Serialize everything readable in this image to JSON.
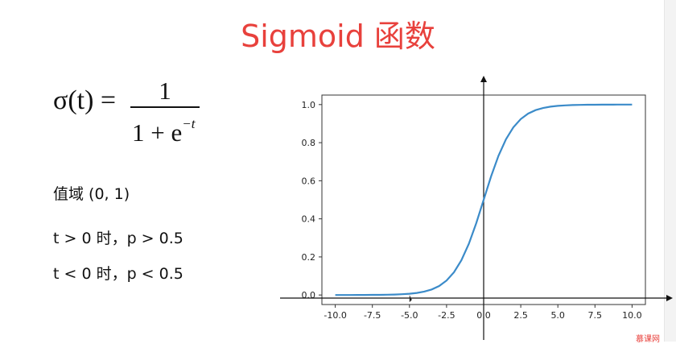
{
  "slide": {
    "title": "Sigmoid 函数",
    "formula": {
      "lhs": "σ(t) =",
      "numerator": "1",
      "denominator_base": "1 + e",
      "denominator_exponent": "−t"
    },
    "notes": {
      "range": "值域 (0, 1)",
      "positive": "t > 0 时，p > 0.5",
      "negative": "t < 0 时，p < 0.5"
    },
    "watermark": "慕课网"
  },
  "chart_data": {
    "type": "line",
    "function": "sigmoid",
    "x": [
      -10.0,
      -9.5,
      -9.0,
      -8.5,
      -8.0,
      -7.5,
      -7.0,
      -6.5,
      -6.0,
      -5.5,
      -5.0,
      -4.5,
      -4.0,
      -3.5,
      -3.0,
      -2.5,
      -2.0,
      -1.5,
      -1.0,
      -0.5,
      0.0,
      0.5,
      1.0,
      1.5,
      2.0,
      2.5,
      3.0,
      3.5,
      4.0,
      4.5,
      5.0,
      5.5,
      6.0,
      6.5,
      7.0,
      7.5,
      8.0,
      8.5,
      9.0,
      9.5,
      10.0
    ],
    "series": [
      {
        "color": "#3b8bc9",
        "values": [
          0.0,
          0.0001,
          0.0001,
          0.0002,
          0.0003,
          0.0006,
          0.0009,
          0.0015,
          0.0025,
          0.0041,
          0.0067,
          0.011,
          0.018,
          0.0293,
          0.0474,
          0.0759,
          0.1192,
          0.1824,
          0.2689,
          0.3775,
          0.5,
          0.6225,
          0.7311,
          0.8176,
          0.8808,
          0.9241,
          0.9526,
          0.9707,
          0.982,
          0.989,
          0.9933,
          0.9959,
          0.9975,
          0.9985,
          0.9991,
          0.9994,
          0.9997,
          0.9998,
          0.9999,
          0.9999,
          1.0
        ]
      }
    ],
    "x_ticks": [
      "-10.0",
      "-7.5",
      "-5.0",
      "-2.5",
      "0.0",
      "2.5",
      "5.0",
      "7.5",
      "10.0"
    ],
    "y_ticks": [
      "0.0",
      "0.2",
      "0.4",
      "0.6",
      "0.8",
      "1.0"
    ],
    "xlim": [
      -10.9,
      10.9
    ],
    "ylim": [
      -0.05,
      1.05
    ],
    "grid": false,
    "title": "",
    "xlabel": "",
    "ylabel": ""
  }
}
